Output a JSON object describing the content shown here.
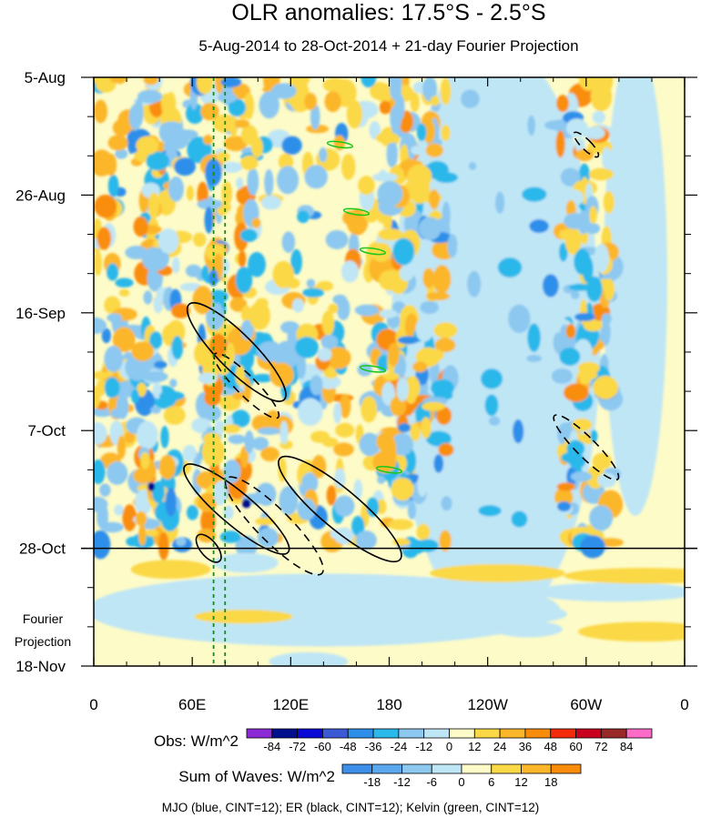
{
  "chart_data": {
    "type": "heatmap",
    "title": "OLR anomalies: 17.5°S - 2.5°S",
    "subtitle": "5-Aug-2014 to 28-Oct-2014 + 21-day Fourier Projection",
    "x_axis": {
      "ticks": [
        {
          "lon": 0,
          "label": "0"
        },
        {
          "lon": 60,
          "label": "60E"
        },
        {
          "lon": 120,
          "label": "120E"
        },
        {
          "lon": 180,
          "label": "180"
        },
        {
          "lon": 240,
          "label": "120W"
        },
        {
          "lon": 300,
          "label": "60W"
        },
        {
          "lon": 360,
          "label": "0"
        }
      ],
      "range": [
        0,
        360
      ]
    },
    "y_axis": {
      "start_date": "5-Aug-2014",
      "end_date": "18-Nov-2014",
      "ticks": [
        {
          "date": "2014-08-05",
          "label": "5-Aug"
        },
        {
          "date": "2014-08-26",
          "label": "26-Aug"
        },
        {
          "date": "2014-09-16",
          "label": "16-Sep"
        },
        {
          "date": "2014-10-07",
          "label": "7-Oct"
        },
        {
          "date": "2014-10-28",
          "label": "28-Oct"
        },
        {
          "date": "2014-11-18",
          "label": "18-Nov"
        }
      ]
    },
    "projection_start": "2014-10-28",
    "projection_label": [
      "Fourier",
      "Projection"
    ],
    "reference_lines_lon": [
      73,
      80
    ],
    "obs_colorbar": {
      "label": "Obs: W/m^2",
      "levels": [
        "-84",
        "-72",
        "-60",
        "-48",
        "-36",
        "-24",
        "-12",
        "0",
        "12",
        "24",
        "36",
        "48",
        "60",
        "72",
        "84"
      ],
      "colors": [
        "#8c2bd6",
        "#000f8c",
        "#0a0ad6",
        "#3d5ad6",
        "#2e8fea",
        "#2bb8ea",
        "#8cc8f0",
        "#bfe6f5",
        "#fdfbc8",
        "#fbd845",
        "#fbb629",
        "#f98d0b",
        "#f52a0a",
        "#c8001e",
        "#992828",
        "#ff6cc8"
      ]
    },
    "waves_colorbar": {
      "label": "Sum of Waves: W/m^2",
      "levels": [
        "-18",
        "-12",
        "-6",
        "0",
        "6",
        "12",
        "18"
      ],
      "colors": [
        "#3d8fea",
        "#5ba8ef",
        "#8cc8f0",
        "#bfe6f5",
        "#fdfbc8",
        "#fbd845",
        "#fbb629",
        "#f98d0b"
      ]
    },
    "footer": "MJO (blue, CINT=12); ER (black, CINT=12); Kelvin (green, CINT=12)",
    "contours": {
      "er_solid": [
        {
          "lon": 87,
          "date": "2014-09-23",
          "rx": 11,
          "ry": 12,
          "angle": 45
        },
        {
          "lon": 87,
          "date": "2014-10-21",
          "rx": 10,
          "ry": 12,
          "angle": 50
        },
        {
          "lon": 150,
          "date": "2014-10-21",
          "rx": 12,
          "ry": 14,
          "angle": 50
        },
        {
          "lon": 70,
          "date": "2014-10-28",
          "rx": 5,
          "ry": 3,
          "angle": 40
        }
      ],
      "er_dashed": [
        {
          "lon": 93,
          "date": "2014-09-29",
          "rx": 6,
          "ry": 8,
          "angle": 45
        },
        {
          "lon": 110,
          "date": "2014-10-24",
          "rx": 10,
          "ry": 12,
          "angle": 45
        },
        {
          "lon": 300,
          "date": "2014-10-10",
          "rx": 6,
          "ry": 8,
          "angle": 45
        },
        {
          "lon": 300,
          "date": "2014-08-17",
          "rx": 3,
          "ry": 3,
          "angle": 45
        }
      ],
      "kelvin": [
        {
          "lon": 150,
          "date": "2014-08-17"
        },
        {
          "lon": 160,
          "date": "2014-08-29"
        },
        {
          "lon": 170,
          "date": "2014-09-05"
        },
        {
          "lon": 170,
          "date": "2014-09-26"
        },
        {
          "lon": 180,
          "date": "2014-10-14"
        }
      ]
    }
  }
}
